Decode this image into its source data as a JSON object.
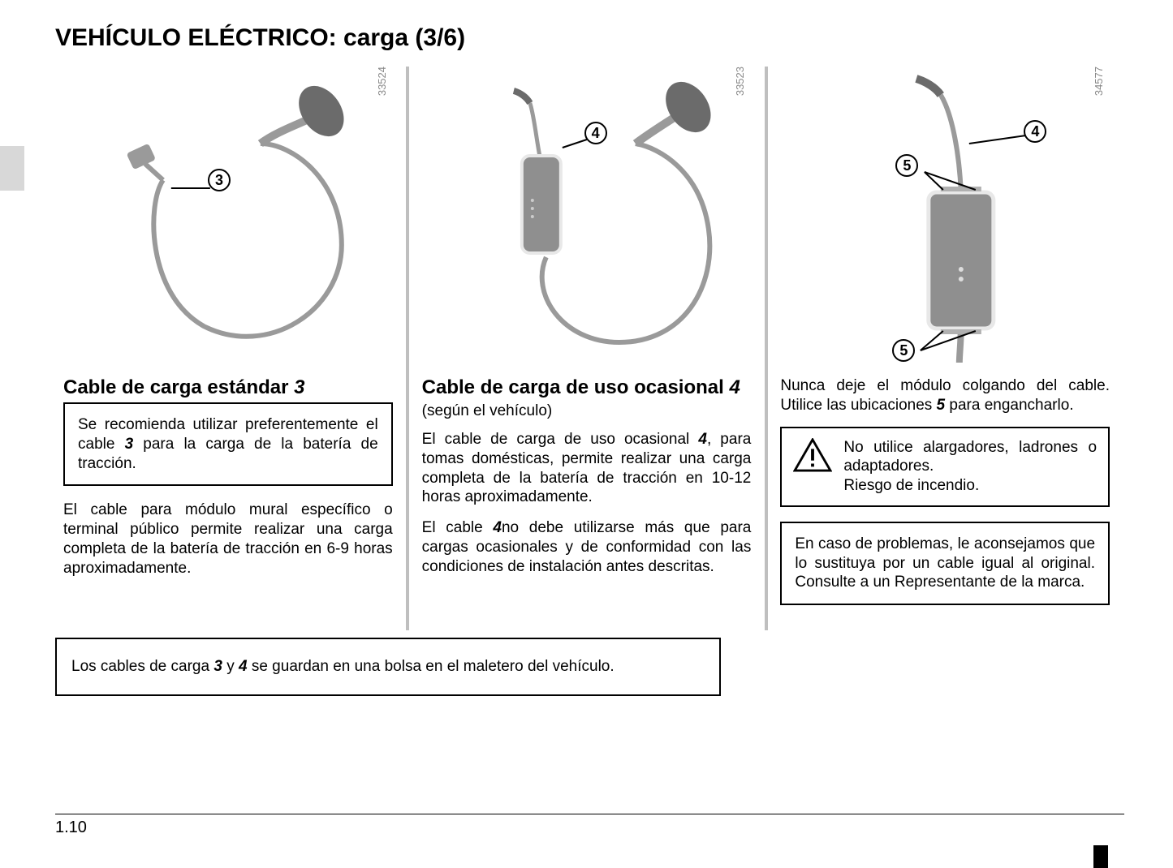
{
  "page": {
    "title": "VEHÍCULO ELÉCTRICO: carga (3/6)",
    "number": "1.10"
  },
  "col1": {
    "img_id": "33524",
    "callouts": {
      "a": "3"
    },
    "heading_pre": "Cable de carga estándar ",
    "heading_num": "3",
    "box_html": "Se recomienda utilizar preferentemente el cable <b class='ital'>3</b> para la carga de la batería de tracción.",
    "para1": "El cable para módulo mural específico o terminal público permite realizar una carga completa de la batería de tracción en 6-9 horas aproximadamente."
  },
  "col2": {
    "img_id": "33523",
    "callouts": {
      "a": "4"
    },
    "heading_pre": "Cable de carga de uso ocasional ",
    "heading_num": "4",
    "subtext": "(según el vehículo)",
    "para1_html": "El cable de carga de uso ocasional <b class='ital'>4</b>, para tomas domésticas, permite realizar una carga completa de la batería de tracción en 10-12 horas aproximadamente.",
    "para2_html": "El cable <b class='ital'>4</b>no debe utilizarse más que para cargas ocasionales y de conformidad con las condiciones de instalación antes descritas."
  },
  "col3": {
    "img_id": "34577",
    "callouts": {
      "a": "4",
      "b": "5",
      "c": "5"
    },
    "para1_html": "Nunca deje el módulo colgando del cable. Utilice las ubicaciones <b class='ital'>5</b> para engancharlo.",
    "warning_html": "No utilice alargadores, ladrones o adaptadores.<br>Riesgo de incendio.",
    "box2_html": "En caso de problemas, le aconsejamos que lo sustituya por un cable igual al original. Consulte a un Representante de la marca."
  },
  "footer": {
    "text_html": "Los cables de carga <b class='ital'>3</b> y <b class='ital'>4</b> se guardan en una bolsa en el maletero del vehículo."
  },
  "colors": {
    "divider": "#bfbfbf",
    "tab": "#d8d8d8",
    "cable": "#9a9a9a",
    "module_fill": "#8f8f8f",
    "module_stroke": "#e8e8e8"
  }
}
